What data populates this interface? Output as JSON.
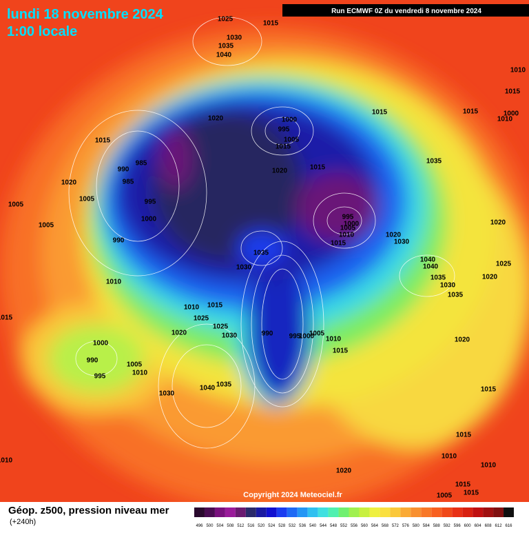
{
  "header": {
    "date": "lundi 18 novembre 2024",
    "time": "1:00 locale",
    "run": "Run ECMWF 0Z du vendredi 8 novembre 2024"
  },
  "copyright": "Copyright 2024 Meteociel.fr",
  "footer": {
    "title": "Géop. z500, pression niveau mer",
    "lead": "(+240h)"
  },
  "scale": {
    "values": [
      496,
      500,
      504,
      508,
      512,
      516,
      520,
      524,
      528,
      532,
      536,
      540,
      544,
      548,
      552,
      556,
      560,
      564,
      568,
      572,
      576,
      580,
      584,
      588,
      592,
      596,
      600,
      604,
      608,
      612,
      616
    ],
    "colors": [
      "#2a0a2e",
      "#4a0c52",
      "#7a107e",
      "#9a1a9a",
      "#6a1a70",
      "#2a2a6a",
      "#1a1aa0",
      "#1010d0",
      "#1a3cf0",
      "#1e6af5",
      "#2496f5",
      "#30c0f0",
      "#40e0e0",
      "#50f0b0",
      "#70f070",
      "#a0f050",
      "#c8f040",
      "#eef040",
      "#fae040",
      "#fac83a",
      "#faaa35",
      "#f89030",
      "#f87828",
      "#f86020",
      "#f04818",
      "#e83015",
      "#d82010",
      "#c01010",
      "#a01010",
      "#801010",
      "#101010"
    ]
  },
  "isobar_labels": [
    "1025",
    "1015",
    "1030",
    "1035",
    "1040",
    "1010",
    "1015",
    "1015",
    "1000",
    "1010",
    "1015",
    "1020",
    "1000",
    "995",
    "1005",
    "1015",
    "1015",
    "985",
    "990",
    "985",
    "1020",
    "1015",
    "1035",
    "1020",
    "1005",
    "995",
    "1005",
    "1005",
    "1000",
    "995",
    "1000",
    "1005",
    "1010",
    "1015",
    "1020",
    "1030",
    "990",
    "1035",
    "1020",
    "1040",
    "1040",
    "1025",
    "1030",
    "1035",
    "1030",
    "1020",
    "1010",
    "1035",
    "1010",
    "1015",
    "1015",
    "1025",
    "1020",
    "1025",
    "1030",
    "990",
    "995",
    "1000",
    "1005",
    "1010",
    "1015",
    "1020",
    "1000",
    "990",
    "1005",
    "1010",
    "995",
    "1040",
    "1035",
    "1030",
    "1015",
    "1015",
    "1010",
    "1010",
    "1010",
    "1020",
    "1005",
    "1015",
    "1015",
    "1015"
  ]
}
